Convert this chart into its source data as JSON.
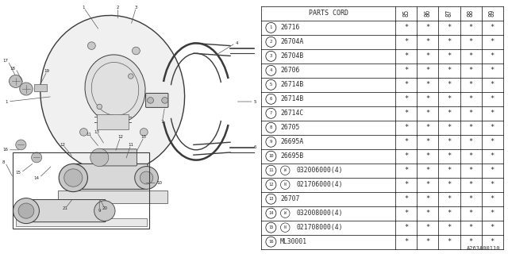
{
  "diagram_ref": "A263A00110",
  "table_header": [
    "PARTS CORD",
    "85",
    "86",
    "87",
    "88",
    "89"
  ],
  "rows": [
    {
      "num": "1",
      "label": "26716",
      "prefix": "",
      "stars": [
        "*",
        "*",
        "*",
        "*",
        "*"
      ]
    },
    {
      "num": "2",
      "label": "26704A",
      "prefix": "",
      "stars": [
        "*",
        "*",
        "*",
        "*",
        "*"
      ]
    },
    {
      "num": "3",
      "label": "26704B",
      "prefix": "",
      "stars": [
        "*",
        "*",
        "*",
        "*",
        "*"
      ]
    },
    {
      "num": "4",
      "label": "26706",
      "prefix": "",
      "stars": [
        "*",
        "*",
        "*",
        "*",
        "*"
      ]
    },
    {
      "num": "5",
      "label": "26714B",
      "prefix": "",
      "stars": [
        "*",
        "*",
        "*",
        "*",
        "*"
      ]
    },
    {
      "num": "6",
      "label": "26714B",
      "prefix": "",
      "stars": [
        "*",
        "*",
        "*",
        "*",
        "*"
      ]
    },
    {
      "num": "7",
      "label": "26714C",
      "prefix": "",
      "stars": [
        "*",
        "*",
        "*",
        "*",
        "*"
      ]
    },
    {
      "num": "8",
      "label": "26705",
      "prefix": "",
      "stars": [
        "*",
        "*",
        "*",
        "*",
        "*"
      ]
    },
    {
      "num": "9",
      "label": "26695A",
      "prefix": "",
      "stars": [
        "*",
        "*",
        "*",
        "*",
        "*"
      ]
    },
    {
      "num": "10",
      "label": "26695B",
      "prefix": "",
      "stars": [
        "*",
        "*",
        "*",
        "*",
        "*"
      ]
    },
    {
      "num": "11",
      "label": "032006000(4)",
      "prefix": "W",
      "stars": [
        "*",
        "*",
        "*",
        "*",
        "*"
      ]
    },
    {
      "num": "12",
      "label": "021706000(4)",
      "prefix": "N",
      "stars": [
        "*",
        "*",
        "*",
        "*",
        "*"
      ]
    },
    {
      "num": "13",
      "label": "26707",
      "prefix": "",
      "stars": [
        "*",
        "*",
        "*",
        "*",
        "*"
      ]
    },
    {
      "num": "14",
      "label": "032008000(4)",
      "prefix": "W",
      "stars": [
        "*",
        "*",
        "*",
        "*",
        "*"
      ]
    },
    {
      "num": "15",
      "label": "021708000(4)",
      "prefix": "N",
      "stars": [
        "*",
        "*",
        "*",
        "*",
        "*"
      ]
    },
    {
      "num": "16",
      "label": "ML30001",
      "prefix": "",
      "stars": [
        "*",
        "*",
        "*",
        "*",
        "*"
      ]
    }
  ],
  "bg_color": "#ffffff",
  "line_color": "#4a4a4a",
  "text_color": "#2a2a2a",
  "table_font_size": 5.8,
  "header_font_size": 6.0
}
